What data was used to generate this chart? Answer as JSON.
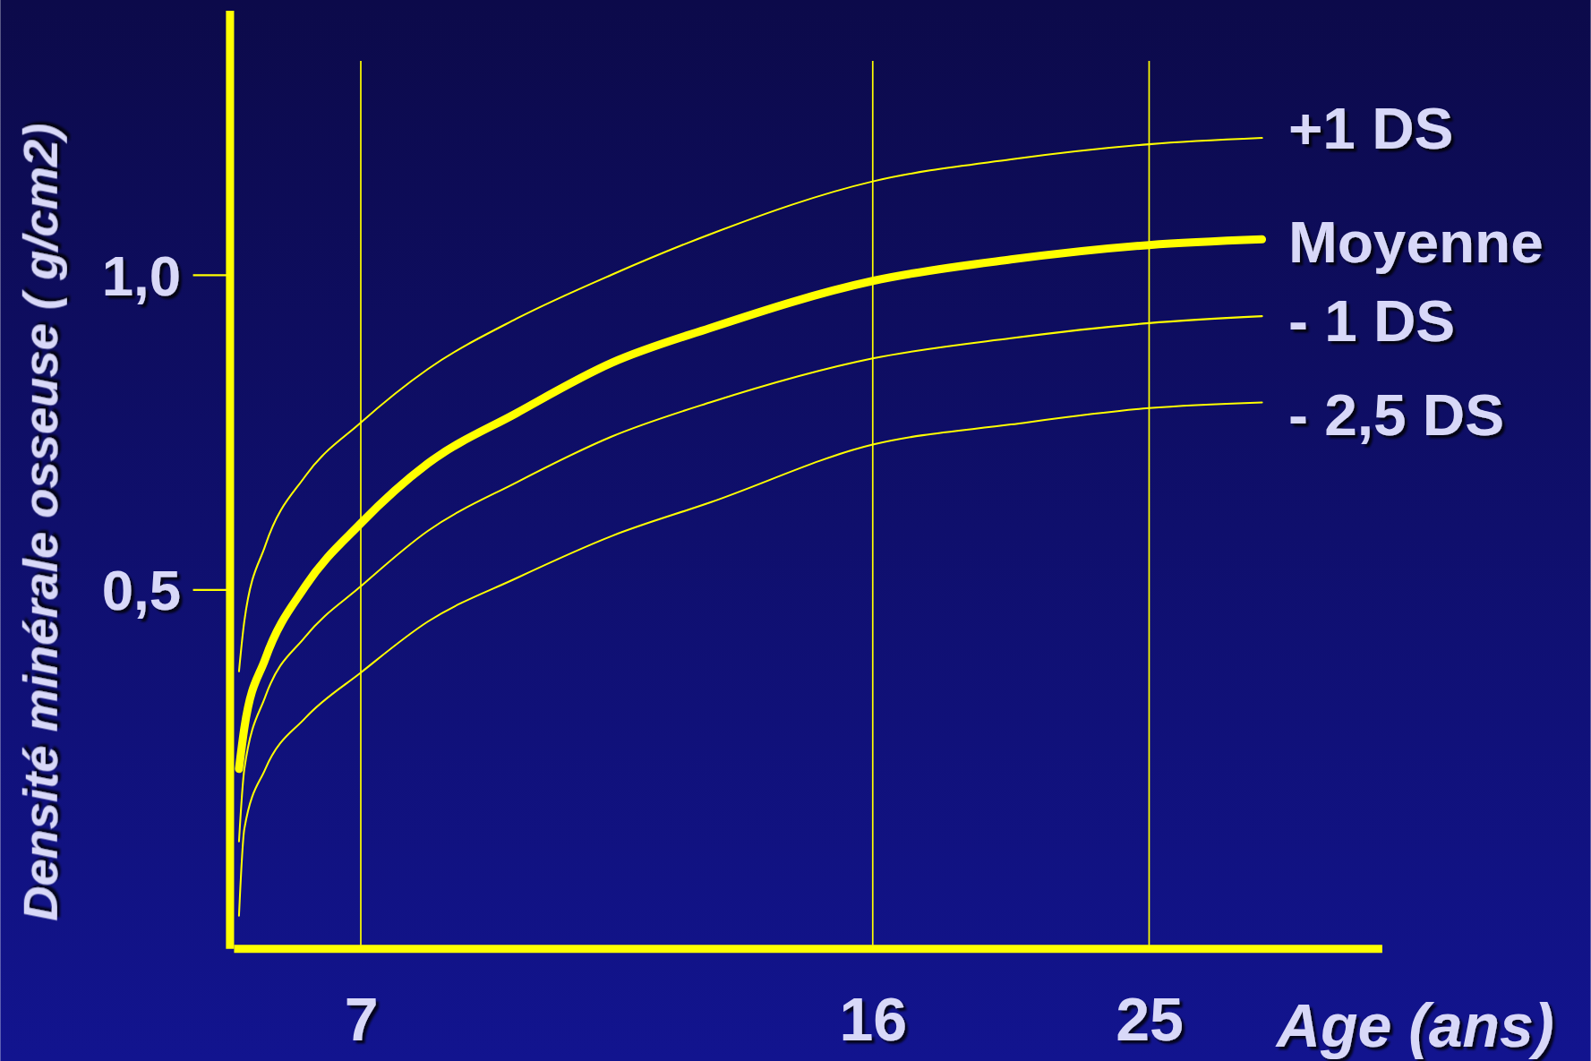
{
  "chart_data": {
    "type": "line",
    "xlabel": "Age (ans)",
    "ylabel": "Densité minérale osseuse ( g/cm2)",
    "log": "x",
    "xlim": [
      5.7,
      36.4
    ],
    "xticks": [
      7,
      16,
      25
    ],
    "ylim": [
      -0.07,
      1.42
    ],
    "yticks": [
      {
        "value": 0.5,
        "label": "0,5"
      },
      {
        "value": 1,
        "label": "1,0"
      }
    ],
    "grid": false,
    "legend": false,
    "marker": "none",
    "ref_lines": [
      {
        "axis": "x",
        "value": 7,
        "color": "#ffff00"
      },
      {
        "axis": "x",
        "value": 16,
        "color": "#ffff00"
      },
      {
        "axis": "x",
        "value": 25,
        "color": "#ffff00"
      }
    ],
    "x": [
      5.75,
      5.8,
      6,
      6.4,
      7,
      7.8,
      9,
      10.5,
      12.3,
      16,
      20,
      25,
      30
    ],
    "series": [
      {
        "name": "+1 DS",
        "color": "#ffff00",
        "values": [
          0.37,
          0.45,
          0.57,
          0.68,
          0.765,
          0.85,
          0.93,
          1.0,
          1.064,
          1.148,
          1.183,
          1.207,
          1.217
        ]
      },
      {
        "name": "Moyenne",
        "color": "#ffff00",
        "values": [
          0.215,
          0.28,
          0.39,
          0.505,
          0.605,
          0.7,
          0.78,
          0.86,
          0.915,
          0.99,
          1.024,
          1.047,
          1.056
        ]
      },
      {
        "name": "- 1 DS",
        "color": "#ffff00",
        "values": [
          0.1,
          0.215,
          0.33,
          0.425,
          0.505,
          0.593,
          0.67,
          0.743,
          0.797,
          0.867,
          0.899,
          0.923,
          0.934
        ]
      },
      {
        "name": "- 2,5 DS",
        "color": "#ffff00",
        "values": [
          -0.018,
          0.12,
          0.215,
          0.296,
          0.368,
          0.449,
          0.518,
          0.585,
          0.638,
          0.73,
          0.762,
          0.788,
          0.797
        ]
      }
    ]
  }
}
